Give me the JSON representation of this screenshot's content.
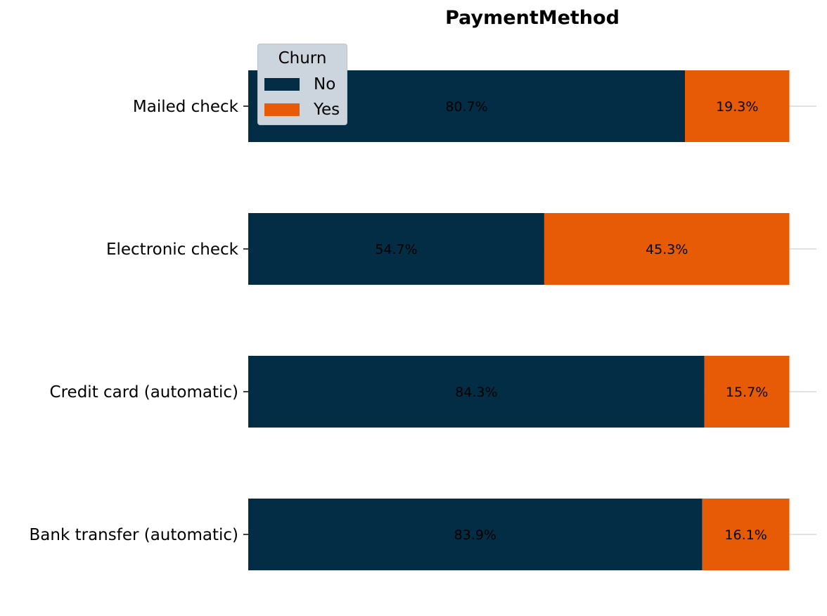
{
  "chart_data": {
    "type": "bar",
    "orientation": "horizontal",
    "stacked": true,
    "normalized_percent": true,
    "title": "PaymentMethod",
    "categories": [
      "Mailed check",
      "Electronic check",
      "Credit card (automatic)",
      "Bank transfer (automatic)"
    ],
    "series": [
      {
        "name": "No",
        "values": [
          80.7,
          54.7,
          84.3,
          83.9
        ],
        "labels": [
          "80.7%",
          "54.7%",
          "84.3%",
          "83.9%"
        ]
      },
      {
        "name": "Yes",
        "values": [
          19.3,
          45.3,
          15.7,
          16.1
        ],
        "labels": [
          "19.3%",
          "45.3%",
          "15.7%",
          "16.1%"
        ]
      }
    ],
    "xlim": [
      0,
      105
    ],
    "grid": "horizontal gridlines at category positions",
    "legend": {
      "title": "Churn",
      "placement": "top-left",
      "entries": [
        "No",
        "Yes"
      ]
    },
    "colors": {
      "No": "#032d45",
      "Yes": "#e85b06",
      "legend_bg": "#ccd5dd",
      "grid": "#d9d9d9"
    }
  }
}
